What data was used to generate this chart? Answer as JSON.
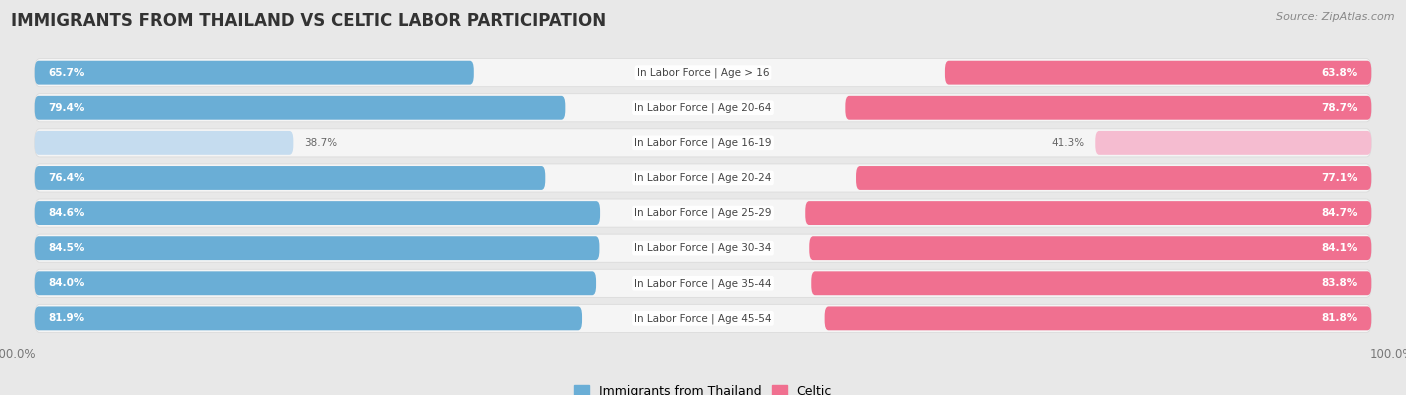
{
  "title": "IMMIGRANTS FROM THAILAND VS CELTIC LABOR PARTICIPATION",
  "source": "Source: ZipAtlas.com",
  "categories": [
    "In Labor Force | Age > 16",
    "In Labor Force | Age 20-64",
    "In Labor Force | Age 16-19",
    "In Labor Force | Age 20-24",
    "In Labor Force | Age 25-29",
    "In Labor Force | Age 30-34",
    "In Labor Force | Age 35-44",
    "In Labor Force | Age 45-54"
  ],
  "thailand_values": [
    65.7,
    79.4,
    38.7,
    76.4,
    84.6,
    84.5,
    84.0,
    81.9
  ],
  "celtic_values": [
    63.8,
    78.7,
    41.3,
    77.1,
    84.7,
    84.1,
    83.8,
    81.8
  ],
  "thailand_color": "#6aaed6",
  "thailand_color_light": "#c5dcef",
  "celtic_color": "#f07090",
  "celtic_color_light": "#f5bcd0",
  "bar_height": 0.68,
  "background_color": "#e8e8e8",
  "row_bg_color": "#f5f5f5",
  "row_border_color": "#d8d8d8",
  "title_fontsize": 12,
  "label_fontsize": 7.5,
  "value_fontsize": 7.5,
  "legend_fontsize": 9,
  "source_fontsize": 8
}
